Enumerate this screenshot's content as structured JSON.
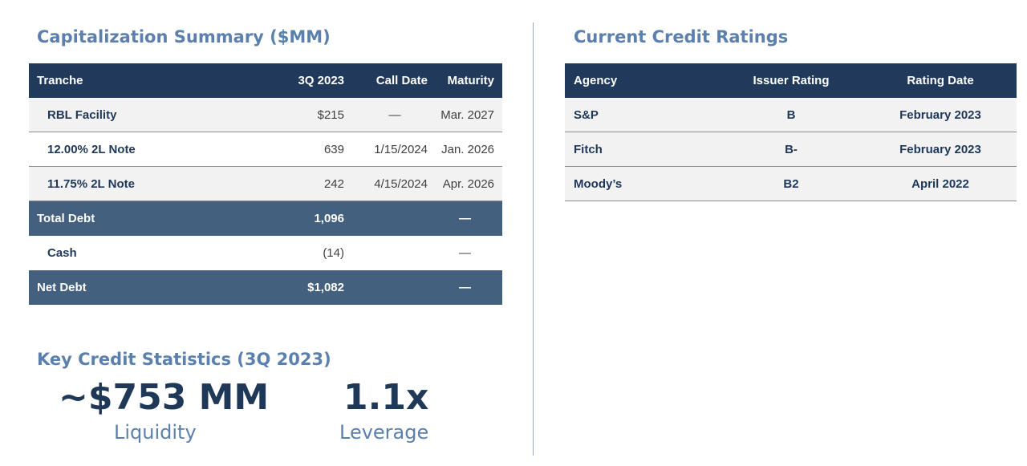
{
  "capitalization": {
    "title": "Capitalization Summary ($MM)",
    "headers": {
      "tranche": "Tranche",
      "value": "3Q 2023",
      "call_date": "Call Date",
      "maturity": "Maturity"
    },
    "rows": [
      {
        "tranche": "RBL Facility",
        "value": "$215",
        "call_date": "—",
        "maturity": "Mar. 2027"
      },
      {
        "tranche": "12.00% 2L Note",
        "value": "639",
        "call_date": "1/15/2024",
        "maturity": "Jan. 2026"
      },
      {
        "tranche": "11.75% 2L Note",
        "value": "242",
        "call_date": "4/15/2024",
        "maturity": "Apr. 2026"
      }
    ],
    "total_debt": {
      "label": "Total Debt",
      "value": "1,096",
      "maturity": "—"
    },
    "cash": {
      "label": "Cash",
      "value": "(14)",
      "maturity": "—"
    },
    "net_debt": {
      "label": "Net Debt",
      "value": "$1,082",
      "maturity": "—"
    }
  },
  "ratings": {
    "title": "Current Credit Ratings",
    "headers": {
      "agency": "Agency",
      "issuer_rating": "Issuer Rating",
      "rating_date": "Rating Date"
    },
    "rows": [
      {
        "agency": "S&P",
        "issuer_rating": "B",
        "rating_date": "February 2023"
      },
      {
        "agency": "Fitch",
        "issuer_rating": "B-",
        "rating_date": "February 2023"
      },
      {
        "agency": "Moody’s",
        "issuer_rating": "B2",
        "rating_date": "April 2022"
      }
    ]
  },
  "key_stats": {
    "title": "Key Credit Statistics (3Q 2023)",
    "liquidity_value": "~$753 MM",
    "liquidity_label": "Liquidity",
    "leverage_value": "1.1x",
    "leverage_label": "Leverage"
  }
}
